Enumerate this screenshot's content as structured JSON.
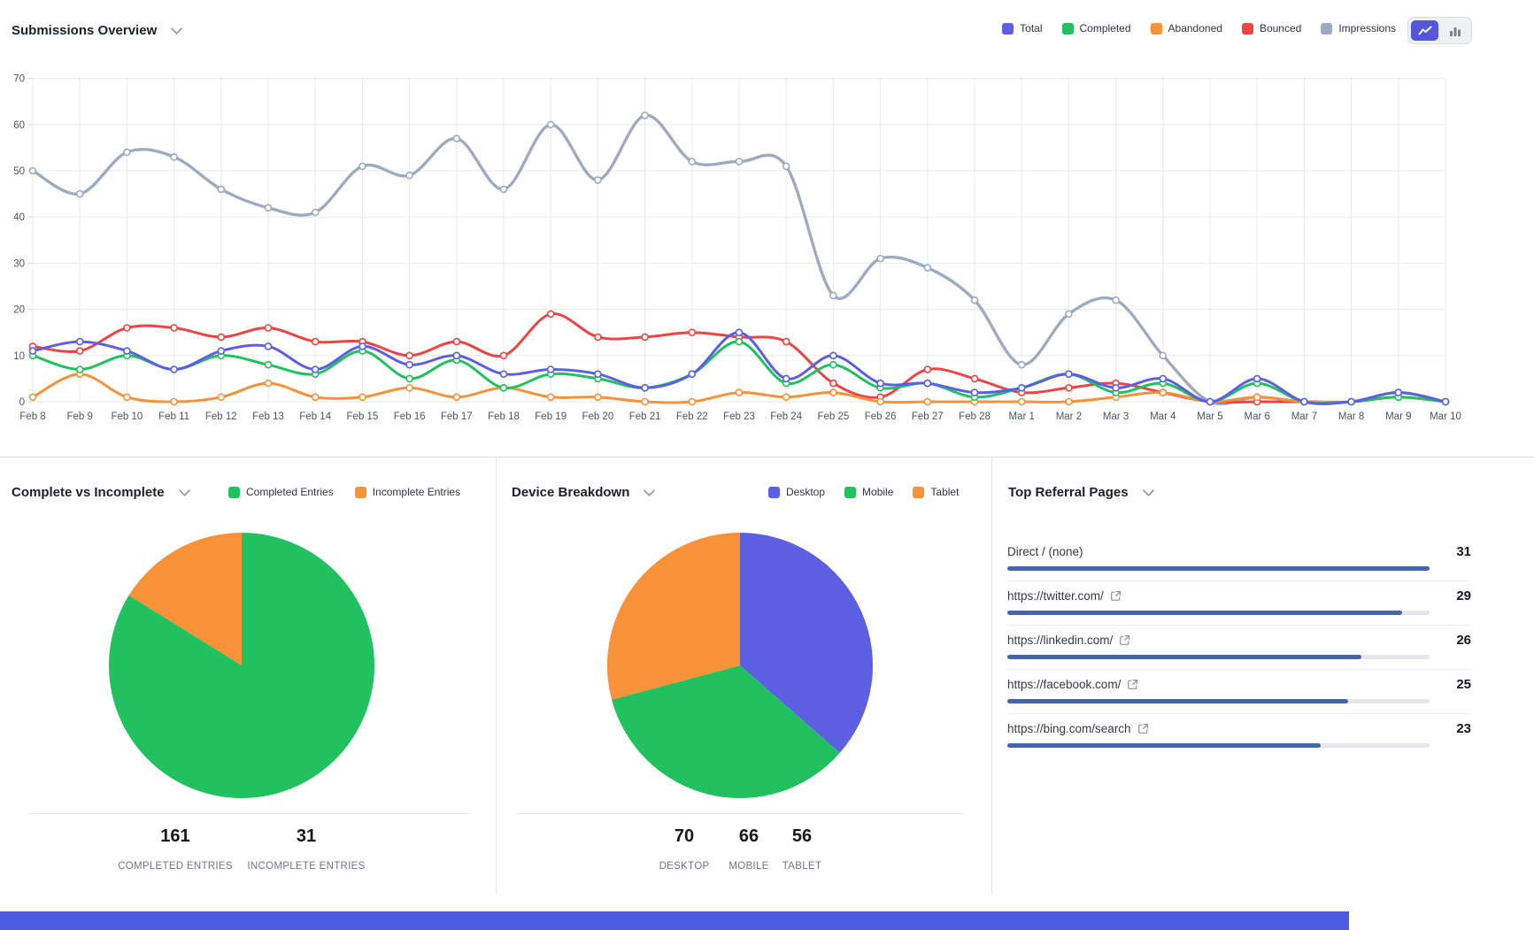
{
  "header": {
    "title": "Submissions Overview",
    "legend": [
      {
        "label": "Total",
        "color": "#5d5fe3"
      },
      {
        "label": "Completed",
        "color": "#22c160"
      },
      {
        "label": "Abandoned",
        "color": "#f79239"
      },
      {
        "label": "Bounced",
        "color": "#ee4444"
      },
      {
        "label": "Impressions",
        "color": "#9dabc0"
      }
    ],
    "chart_type_toggle": {
      "active": "line",
      "options": [
        "line",
        "bar"
      ]
    }
  },
  "chart_data": [
    {
      "type": "line",
      "title": "Submissions Overview",
      "x": [
        "Feb 8",
        "Feb 9",
        "Feb 10",
        "Feb 11",
        "Feb 12",
        "Feb 13",
        "Feb 14",
        "Feb 15",
        "Feb 16",
        "Feb 17",
        "Feb 18",
        "Feb 19",
        "Feb 20",
        "Feb 21",
        "Feb 22",
        "Feb 23",
        "Feb 24",
        "Feb 25",
        "Feb 26",
        "Feb 27",
        "Feb 28",
        "Mar 1",
        "Mar 2",
        "Mar 3",
        "Mar 4",
        "Mar 5",
        "Mar 6",
        "Mar 7",
        "Mar 8",
        "Mar 9",
        "Mar 10"
      ],
      "ylim": [
        0,
        70
      ],
      "yticks": [
        0,
        10,
        20,
        30,
        40,
        50,
        60,
        70
      ],
      "grid": true,
      "legend_position": "top-right",
      "series": [
        {
          "name": "Total",
          "color": "#5d5fe3",
          "values": [
            11,
            13,
            11,
            7,
            11,
            12,
            7,
            12,
            8,
            10,
            6,
            7,
            6,
            3,
            6,
            15,
            5,
            10,
            4,
            4,
            2,
            3,
            6,
            3,
            5,
            0,
            5,
            0,
            0,
            2,
            0
          ]
        },
        {
          "name": "Completed",
          "color": "#22c160",
          "values": [
            10,
            7,
            10,
            7,
            10,
            8,
            6,
            11,
            5,
            9,
            3,
            6,
            5,
            3,
            6,
            13,
            4,
            8,
            3,
            4,
            1,
            3,
            6,
            2,
            4,
            0,
            4,
            0,
            0,
            1,
            0
          ]
        },
        {
          "name": "Abandoned",
          "color": "#f79239",
          "values": [
            1,
            6,
            1,
            0,
            1,
            4,
            1,
            1,
            3,
            1,
            3,
            1,
            1,
            0,
            0,
            2,
            1,
            2,
            0,
            0,
            0,
            0,
            0,
            1,
            2,
            0,
            1,
            0,
            0,
            1,
            0
          ]
        },
        {
          "name": "Bounced",
          "color": "#ee4444",
          "values": [
            12,
            11,
            16,
            16,
            14,
            16,
            13,
            13,
            10,
            13,
            10,
            19,
            14,
            14,
            15,
            14,
            13,
            4,
            1,
            7,
            5,
            2,
            3,
            4,
            2,
            0,
            0,
            0,
            0,
            1,
            0
          ]
        },
        {
          "name": "Impressions",
          "color": "#9dabc0",
          "values": [
            50,
            45,
            54,
            53,
            46,
            42,
            41,
            51,
            49,
            57,
            46,
            60,
            48,
            62,
            52,
            52,
            51,
            23,
            31,
            29,
            22,
            8,
            19,
            22,
            10,
            0,
            1,
            0,
            0,
            2,
            0
          ]
        }
      ]
    },
    {
      "type": "pie",
      "title": "Complete vs Incomplete",
      "slices": [
        {
          "label": "Completed Entries",
          "value": 161,
          "color": "#22c160"
        },
        {
          "label": "Incomplete Entries",
          "value": 31,
          "color": "#f79239"
        }
      ]
    },
    {
      "type": "pie",
      "title": "Device Breakdown",
      "slices": [
        {
          "label": "Desktop",
          "value": 70,
          "color": "#5d5fe3"
        },
        {
          "label": "Mobile",
          "value": 66,
          "color": "#22c160"
        },
        {
          "label": "Tablet",
          "value": 56,
          "color": "#f79239"
        }
      ]
    }
  ],
  "sections": {
    "complete": {
      "title": "Complete vs Incomplete",
      "stats": [
        {
          "value": "161",
          "label": "COMPLETED ENTRIES"
        },
        {
          "value": "31",
          "label": "INCOMPLETE ENTRIES"
        }
      ]
    },
    "device": {
      "title": "Device Breakdown",
      "stats": [
        {
          "value": "70",
          "label": "DESKTOP"
        },
        {
          "value": "66",
          "label": "MOBILE"
        },
        {
          "value": "56",
          "label": "TABLET"
        }
      ]
    },
    "referral": {
      "title": "Top Referral Pages",
      "max_value": 31,
      "rows": [
        {
          "label": "Direct / (none)",
          "value": 31,
          "external_link": false
        },
        {
          "label": "https://twitter.com/",
          "value": 29,
          "external_link": true
        },
        {
          "label": "https://linkedin.com/",
          "value": 26,
          "external_link": true
        },
        {
          "label": "https://facebook.com/",
          "value": 25,
          "external_link": true
        },
        {
          "label": "https://bing.com/search",
          "value": 23,
          "external_link": true
        }
      ]
    }
  },
  "colors": {
    "referral_bar": "#4564ad",
    "referral_track": "#e4e6ea",
    "grid": "#e9e9e9",
    "axis_text": "#4b5563",
    "footer_bar": "#4c5ae2"
  }
}
